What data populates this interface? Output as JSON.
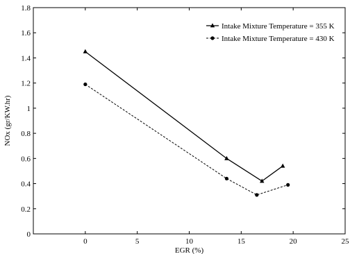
{
  "chart_data": {
    "type": "line",
    "title": "",
    "xlabel": "EGR (%)",
    "ylabel": "NOx (gr/KW.hr)",
    "xlim": [
      -5,
      25
    ],
    "ylim": [
      0,
      1.8
    ],
    "xticks": [
      0,
      5,
      10,
      15,
      20,
      25
    ],
    "yticks": [
      0,
      0.2,
      0.4,
      0.6,
      0.8,
      1,
      1.2,
      1.4,
      1.6,
      1.8
    ],
    "grid": false,
    "legend_position": "top-right",
    "series": [
      {
        "name": "Intake Mixture Temperature = 355 K",
        "marker": "triangle",
        "line_style": "solid",
        "color": "#000000",
        "x": [
          0,
          13.6,
          17,
          19
        ],
        "y": [
          1.45,
          0.6,
          0.42,
          0.54
        ]
      },
      {
        "name": "Intake Mixture Temperature = 430 K",
        "marker": "circle",
        "line_style": "dashed",
        "color": "#000000",
        "x": [
          0,
          13.6,
          16.5,
          19.5
        ],
        "y": [
          1.19,
          0.44,
          0.31,
          0.39
        ]
      }
    ]
  }
}
